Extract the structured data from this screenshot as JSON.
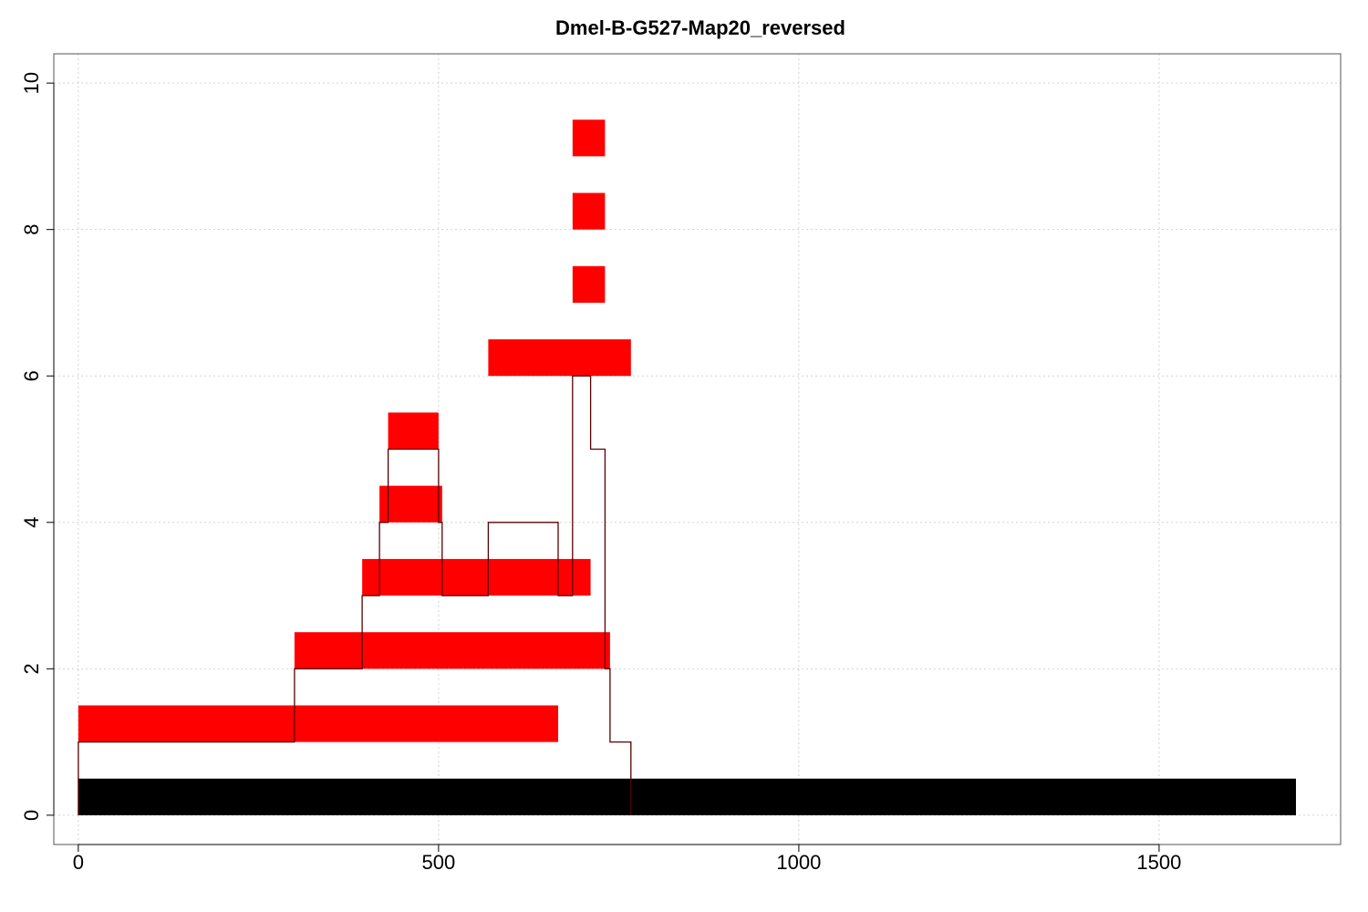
{
  "chart_data": {
    "type": "bar",
    "title": "Dmel-B-G527-Map20_reversed",
    "xlabel": "",
    "ylabel": "",
    "xlim": [
      -34,
      1752
    ],
    "ylim": [
      -0.4,
      10.4
    ],
    "x_ticks": [
      0,
      500,
      1000,
      1500
    ],
    "y_ticks": [
      0,
      2,
      4,
      6,
      8,
      10
    ],
    "grid": true,
    "colors": {
      "segment": "#ff0000",
      "reference": "#000000",
      "coverage_line": "#5a0000",
      "grid": "#d3d3d3",
      "frame": "#555555"
    },
    "reference_bar": {
      "x0": 0,
      "x1": 1690,
      "y0": 0,
      "y1": 0.5
    },
    "segments": [
      {
        "x0": 0,
        "x1": 666,
        "y0": 1,
        "y1": 1.5
      },
      {
        "x0": 300,
        "x1": 738,
        "y0": 2,
        "y1": 2.5
      },
      {
        "x0": 394,
        "x1": 711,
        "y0": 3,
        "y1": 3.5
      },
      {
        "x0": 418,
        "x1": 505,
        "y0": 4,
        "y1": 4.5
      },
      {
        "x0": 430,
        "x1": 500,
        "y0": 5,
        "y1": 5.5
      },
      {
        "x0": 569,
        "x1": 767,
        "y0": 6,
        "y1": 6.5
      },
      {
        "x0": 686,
        "x1": 731,
        "y0": 7,
        "y1": 7.5
      },
      {
        "x0": 686,
        "x1": 731,
        "y0": 8,
        "y1": 8.5
      },
      {
        "x0": 686,
        "x1": 731,
        "y0": 9,
        "y1": 9.5
      }
    ],
    "coverage_step": {
      "x": [
        0,
        0,
        300,
        300,
        394,
        394,
        418,
        418,
        430,
        430,
        500,
        500,
        505,
        505,
        569,
        569,
        666,
        666,
        686,
        686,
        711,
        711,
        731,
        731,
        738,
        738,
        767,
        767
      ],
      "y": [
        0,
        1,
        1,
        2,
        2,
        3,
        3,
        4,
        4,
        5,
        5,
        4,
        4,
        3,
        3,
        4,
        4,
        3,
        3,
        6,
        6,
        5,
        5,
        2,
        2,
        1,
        1,
        0
      ]
    }
  }
}
